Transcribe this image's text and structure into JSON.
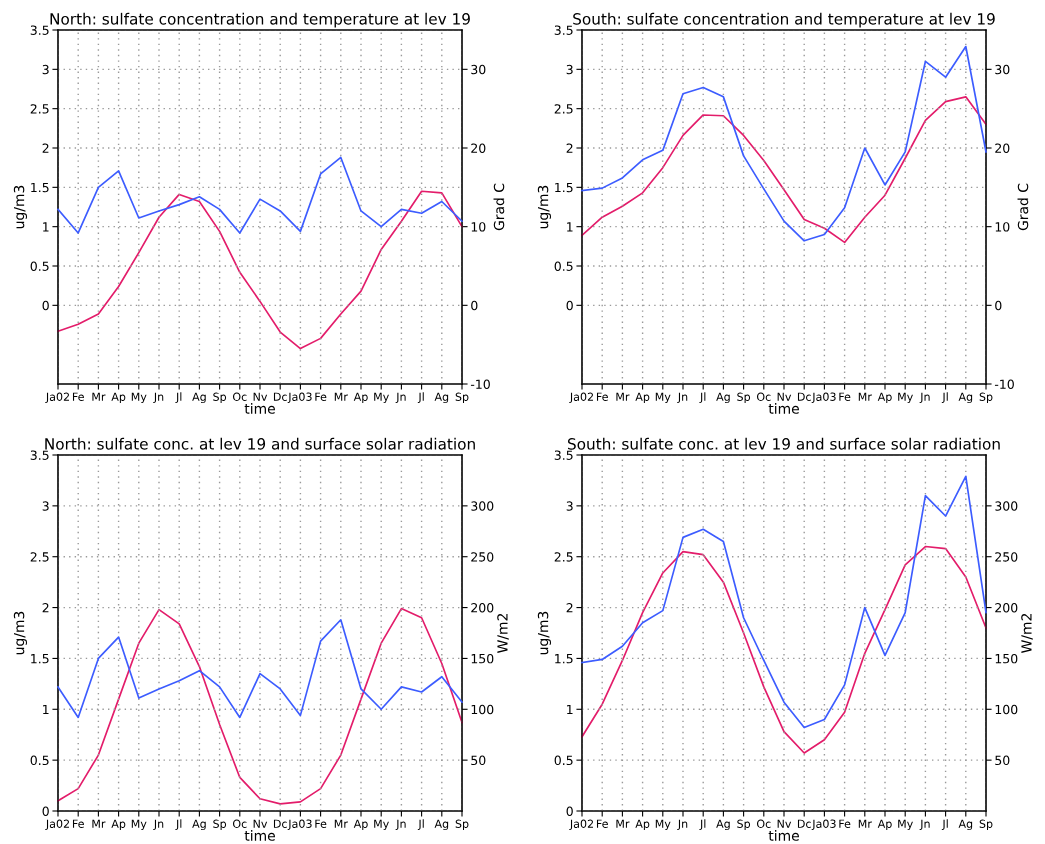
{
  "chart_data": [
    {
      "type": "line",
      "title": "North: sulfate concentration and temperature at lev 19",
      "xlabel": "time",
      "ylabel": "ug/m3",
      "y2label": "Grad C",
      "categories": [
        "Ja02",
        "Fe",
        "Mr",
        "Ap",
        "My",
        "Jn",
        "Jl",
        "Ag",
        "Sp",
        "Oc",
        "Nv",
        "Dc",
        "Ja03",
        "Fe",
        "Mr",
        "Ap",
        "My",
        "Jn",
        "Jl",
        "Ag",
        "Sp"
      ],
      "ylim": [
        -1,
        3.5
      ],
      "yticks": [
        0,
        0.5,
        1,
        1.5,
        2,
        2.5,
        3,
        3.5
      ],
      "y2lim": [
        -10,
        35
      ],
      "y2ticks": [
        -10,
        0,
        10,
        20,
        30
      ],
      "grid": true,
      "legend": false,
      "series": [
        {
          "color": "#3c5cff",
          "values": [
            1.22,
            0.92,
            1.5,
            1.71,
            1.11,
            1.2,
            1.28,
            1.38,
            1.22,
            0.92,
            1.35,
            1.2,
            0.94,
            1.67,
            1.88,
            1.2,
            1.0,
            1.22,
            1.17,
            1.32,
            1.07
          ]
        },
        {
          "color": "#e31c6a",
          "axis": "y2",
          "values": [
            -3.3,
            -2.4,
            -1.1,
            2.4,
            6.7,
            11.2,
            14.1,
            13.2,
            9.4,
            4.2,
            0.5,
            -3.4,
            -5.5,
            -4.2,
            -1.1,
            1.8,
            7.1,
            10.7,
            14.5,
            14.3,
            10
          ]
        }
      ]
    },
    {
      "type": "line",
      "title": "South: sulfate concentration and temperature at lev 19",
      "xlabel": "time",
      "ylabel": "ug/m3",
      "y2label": "Grad C",
      "categories": [
        "Ja02",
        "Fe",
        "Mr",
        "Ap",
        "My",
        "Jn",
        "Jl",
        "Ag",
        "Sp",
        "Oc",
        "Nv",
        "Dc",
        "Ja03",
        "Fe",
        "Mr",
        "Ap",
        "My",
        "Jn",
        "Jl",
        "Ag",
        "Sp"
      ],
      "ylim": [
        -1,
        3.5
      ],
      "yticks": [
        0,
        0.5,
        1,
        1.5,
        2,
        2.5,
        3,
        3.5
      ],
      "y2lim": [
        -10,
        35
      ],
      "y2ticks": [
        -10,
        0,
        10,
        20,
        30
      ],
      "grid": true,
      "legend": false,
      "series": [
        {
          "color": "#3c5cff",
          "values": [
            1.46,
            1.49,
            1.62,
            1.85,
            1.97,
            2.69,
            2.77,
            2.65,
            1.9,
            1.48,
            1.07,
            0.82,
            0.9,
            1.24,
            2.0,
            1.53,
            1.95,
            3.1,
            2.9,
            3.29,
            1.95
          ]
        },
        {
          "color": "#e31c6a",
          "axis": "y2",
          "values": [
            8.9,
            11.2,
            12.6,
            14.3,
            17.5,
            21.6,
            24.2,
            24.1,
            21.6,
            18.4,
            14.7,
            10.9,
            9.8,
            8.0,
            11.2,
            14,
            18.7,
            23.5,
            25.9,
            26.5,
            23
          ]
        }
      ]
    },
    {
      "type": "line",
      "title": "North: sulfate conc. at lev 19 and surface solar radiation",
      "xlabel": "time",
      "ylabel": "ug/m3",
      "y2label": "W/m2",
      "categories": [
        "Ja02",
        "Fe",
        "Mr",
        "Ap",
        "My",
        "Jn",
        "Jl",
        "Ag",
        "Sp",
        "Oc",
        "Nv",
        "Dc",
        "Ja03",
        "Fe",
        "Mr",
        "Ap",
        "My",
        "Jn",
        "Jl",
        "Ag",
        "Sp"
      ],
      "ylim": [
        0,
        3.5
      ],
      "yticks": [
        0,
        0.5,
        1,
        1.5,
        2,
        2.5,
        3,
        3.5
      ],
      "y2lim": [
        0,
        350
      ],
      "y2ticks": [
        50,
        100,
        150,
        200,
        250,
        300
      ],
      "grid": true,
      "legend": false,
      "series": [
        {
          "color": "#3c5cff",
          "values": [
            1.22,
            0.92,
            1.5,
            1.71,
            1.11,
            1.2,
            1.28,
            1.38,
            1.22,
            0.92,
            1.35,
            1.2,
            0.94,
            1.67,
            1.88,
            1.2,
            1.0,
            1.22,
            1.17,
            1.32,
            1.07
          ]
        },
        {
          "color": "#e31c6a",
          "axis": "y2",
          "values": [
            10,
            22,
            55,
            110,
            165,
            198,
            184,
            142,
            85,
            33,
            12,
            7,
            9,
            22,
            55,
            110,
            165,
            199,
            190,
            145,
            87
          ]
        }
      ]
    },
    {
      "type": "line",
      "title": "South: sulfate conc. at lev 19 and surface solar radiation",
      "xlabel": "time",
      "ylabel": "ug/m3",
      "y2label": "W/m2",
      "categories": [
        "Ja02",
        "Fe",
        "Mr",
        "Ap",
        "My",
        "Jn",
        "Jl",
        "Ag",
        "Sp",
        "Oc",
        "Nv",
        "Dc",
        "Ja03",
        "Fe",
        "Mr",
        "Ap",
        "My",
        "Jn",
        "Jl",
        "Ag",
        "Sp"
      ],
      "ylim": [
        0,
        3.5
      ],
      "yticks": [
        0,
        0.5,
        1,
        1.5,
        2,
        2.5,
        3,
        3.5
      ],
      "y2lim": [
        0,
        350
      ],
      "y2ticks": [
        50,
        100,
        150,
        200,
        250,
        300
      ],
      "grid": true,
      "legend": false,
      "series": [
        {
          "color": "#3c5cff",
          "values": [
            1.46,
            1.49,
            1.62,
            1.85,
            1.97,
            2.69,
            2.77,
            2.65,
            1.9,
            1.48,
            1.07,
            0.82,
            0.9,
            1.24,
            2.0,
            1.53,
            1.95,
            3.1,
            2.9,
            3.29,
            1.95
          ]
        },
        {
          "color": "#e31c6a",
          "axis": "y2",
          "values": [
            73,
            105,
            148,
            195,
            234,
            255,
            252,
            225,
            175,
            122,
            78,
            57,
            70,
            97,
            155,
            198,
            242,
            260,
            258,
            230,
            180
          ]
        }
      ]
    }
  ]
}
